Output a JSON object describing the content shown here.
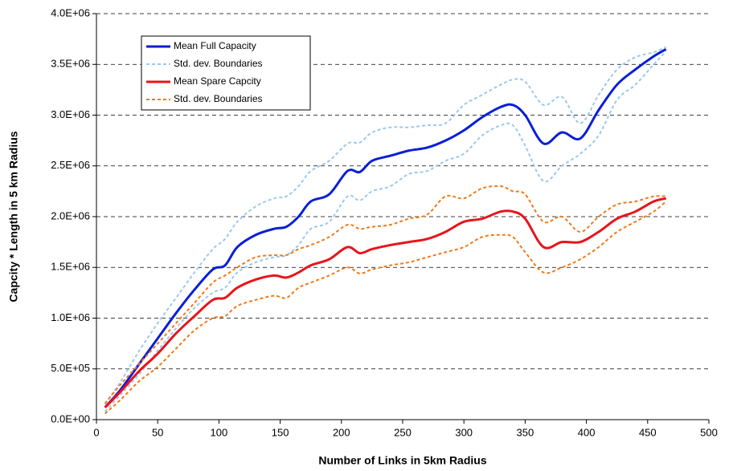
{
  "chart_data": {
    "type": "line",
    "xlabel": "Number of Links in 5km Radius",
    "ylabel": "Capcity * Length in 5 km Radius",
    "x": [
      7,
      20,
      35,
      50,
      65,
      80,
      95,
      105,
      115,
      130,
      145,
      155,
      165,
      175,
      190,
      205,
      215,
      225,
      240,
      255,
      270,
      285,
      300,
      315,
      330,
      340,
      350,
      365,
      380,
      395,
      410,
      425,
      440,
      455,
      465
    ],
    "series": [
      {
        "name": "Mean Full Capacity",
        "color": "#0a1fd6",
        "dash": false,
        "values": [
          120000,
          300000,
          550000,
          800000,
          1050000,
          1280000,
          1480000,
          1520000,
          1700000,
          1820000,
          1880000,
          1900000,
          2000000,
          2150000,
          2220000,
          2450000,
          2440000,
          2550000,
          2600000,
          2650000,
          2680000,
          2750000,
          2850000,
          2980000,
          3080000,
          3100000,
          3000000,
          2720000,
          2830000,
          2770000,
          3050000,
          3300000,
          3450000,
          3580000,
          3650000
        ]
      },
      {
        "name": "Std. dev. Boundaries",
        "color": "#9cc8f0",
        "dash": true,
        "values": [
          150000,
          380000,
          680000,
          950000,
          1200000,
          1450000,
          1680000,
          1780000,
          1950000,
          2100000,
          2180000,
          2200000,
          2300000,
          2450000,
          2550000,
          2720000,
          2730000,
          2830000,
          2880000,
          2880000,
          2900000,
          2920000,
          3100000,
          3200000,
          3300000,
          3350000,
          3330000,
          3100000,
          3180000,
          2920000,
          3200000,
          3450000,
          3570000,
          3620000,
          3670000
        ],
        "lower": [
          80000,
          250000,
          450000,
          680000,
          900000,
          1100000,
          1250000,
          1300000,
          1450000,
          1550000,
          1600000,
          1620000,
          1720000,
          1880000,
          1950000,
          2200000,
          2160000,
          2250000,
          2300000,
          2420000,
          2450000,
          2550000,
          2620000,
          2800000,
          2900000,
          2900000,
          2700000,
          2350000,
          2500000,
          2620000,
          2800000,
          3150000,
          3300000,
          3500000,
          3630000
        ]
      },
      {
        "name": "Mean Spare Capcity",
        "color": "#e8141b",
        "dash": false,
        "values": [
          120000,
          280000,
          480000,
          650000,
          850000,
          1020000,
          1180000,
          1200000,
          1300000,
          1380000,
          1420000,
          1400000,
          1450000,
          1520000,
          1580000,
          1700000,
          1640000,
          1680000,
          1720000,
          1750000,
          1780000,
          1850000,
          1950000,
          1980000,
          2050000,
          2050000,
          1980000,
          1700000,
          1750000,
          1750000,
          1850000,
          1980000,
          2050000,
          2150000,
          2180000
        ]
      },
      {
        "name": "Std. dev. Boundaries",
        "color": "#f07a1a",
        "dash": true,
        "values": [
          160000,
          350000,
          550000,
          750000,
          950000,
          1150000,
          1350000,
          1420000,
          1500000,
          1600000,
          1620000,
          1620000,
          1680000,
          1720000,
          1800000,
          1920000,
          1880000,
          1900000,
          1920000,
          1980000,
          2020000,
          2200000,
          2180000,
          2280000,
          2300000,
          2250000,
          2220000,
          1950000,
          2000000,
          1850000,
          2000000,
          2120000,
          2150000,
          2200000,
          2200000
        ],
        "lower": [
          60000,
          200000,
          380000,
          520000,
          700000,
          880000,
          1000000,
          1020000,
          1120000,
          1180000,
          1220000,
          1200000,
          1300000,
          1350000,
          1420000,
          1500000,
          1440000,
          1480000,
          1520000,
          1550000,
          1600000,
          1650000,
          1700000,
          1800000,
          1820000,
          1800000,
          1650000,
          1450000,
          1500000,
          1580000,
          1700000,
          1850000,
          1950000,
          2050000,
          2150000
        ]
      }
    ],
    "xlim": [
      0,
      500
    ],
    "xticks": [
      0,
      50,
      100,
      150,
      200,
      250,
      300,
      350,
      400,
      450,
      500
    ],
    "ylim": [
      0,
      4000000
    ],
    "yticks": [
      {
        "value": 0,
        "label": "0.0E+00"
      },
      {
        "value": 500000,
        "label": "5.0E+05"
      },
      {
        "value": 1000000,
        "label": "1.0E+06"
      },
      {
        "value": 1500000,
        "label": "1.5E+06"
      },
      {
        "value": 2000000,
        "label": "2.0E+06"
      },
      {
        "value": 2500000,
        "label": "2.5E+06"
      },
      {
        "value": 3000000,
        "label": "3.0E+06"
      },
      {
        "value": 3500000,
        "label": "3.5E+06"
      },
      {
        "value": 4000000,
        "label": "4.0E+06"
      }
    ],
    "grid": true
  }
}
